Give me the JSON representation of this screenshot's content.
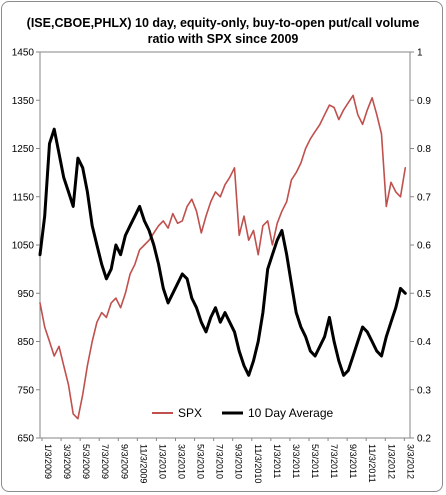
{
  "chart_data": {
    "type": "line",
    "title_lines": [
      "(ISE,CBOE,PHLX) 10 day, equity-only, buy-to-open put/call volume",
      "ratio with SPX since 2009"
    ],
    "left_axis": {
      "ylim": [
        650,
        1450
      ],
      "ticks": [
        "650",
        "750",
        "850",
        "950",
        "1050",
        "1150",
        "1250",
        "1350",
        "1450"
      ]
    },
    "right_axis": {
      "ylim": [
        0.2,
        1.0
      ],
      "ticks": [
        "0.2",
        "0.3",
        "0.4",
        "0.5",
        "0.6",
        "0.7",
        "0.8",
        "0.9",
        "1"
      ]
    },
    "x_labels": [
      "1/3/2009",
      "3/3/2009",
      "5/3/2009",
      "7/3/2009",
      "9/3/2009",
      "11/3/2009",
      "1/3/2010",
      "3/3/2010",
      "5/3/2010",
      "7/3/2010",
      "9/3/2010",
      "11/3/2010",
      "1/3/2011",
      "3/3/2011",
      "5/3/2011",
      "7/3/2011",
      "9/3/2011",
      "11/3/2011",
      "1/3/2012",
      "3/3/2012"
    ],
    "x_range": [
      0,
      39
    ],
    "legend": {
      "placement": "bottom-center"
    },
    "series": [
      {
        "name": "SPX",
        "axis": "left",
        "color": "#c0504d",
        "x": [
          0,
          0.5,
          1,
          1.5,
          2,
          2.5,
          3,
          3.5,
          4,
          4.5,
          5,
          5.5,
          6,
          6.5,
          7,
          7.5,
          8,
          8.5,
          9,
          9.5,
          10,
          10.5,
          11,
          11.5,
          12,
          12.5,
          13,
          13.5,
          14,
          14.5,
          15,
          15.5,
          16,
          16.5,
          17,
          17.5,
          18,
          18.5,
          19,
          19.5,
          20,
          20.5,
          21,
          21.5,
          22,
          22.5,
          23,
          23.5,
          24,
          24.5,
          25,
          25.5,
          26,
          26.5,
          27,
          27.5,
          28,
          28.5,
          29,
          29.5,
          30,
          30.5,
          31,
          31.5,
          32,
          32.5,
          33,
          33.5,
          34,
          34.5,
          35,
          35.5,
          36,
          36.5,
          37,
          37.5,
          38,
          38.5
        ],
        "values": [
          930,
          880,
          850,
          820,
          840,
          800,
          760,
          700,
          690,
          740,
          800,
          850,
          890,
          910,
          900,
          930,
          940,
          920,
          950,
          990,
          1010,
          1040,
          1050,
          1060,
          1075,
          1090,
          1100,
          1085,
          1115,
          1095,
          1100,
          1130,
          1145,
          1120,
          1075,
          1110,
          1140,
          1160,
          1150,
          1175,
          1190,
          1210,
          1070,
          1110,
          1060,
          1080,
          1030,
          1090,
          1100,
          1050,
          1095,
          1120,
          1140,
          1185,
          1200,
          1220,
          1250,
          1270,
          1285,
          1300,
          1320,
          1340,
          1335,
          1310,
          1330,
          1345,
          1360,
          1320,
          1300,
          1330,
          1355,
          1320,
          1280,
          1130,
          1180,
          1160,
          1150,
          1210
        ]
      },
      {
        "name": "10 Day Average",
        "axis": "right",
        "color": "#000000",
        "x": [
          0,
          0.5,
          1,
          1.5,
          2,
          2.5,
          3,
          3.5,
          4,
          4.5,
          5,
          5.5,
          6,
          6.5,
          7,
          7.5,
          8,
          8.5,
          9,
          9.5,
          10,
          10.5,
          11,
          11.5,
          12,
          12.5,
          13,
          13.5,
          14,
          14.5,
          15,
          15.5,
          16,
          16.5,
          17,
          17.5,
          18,
          18.5,
          19,
          19.5,
          20,
          20.5,
          21,
          21.5,
          22,
          22.5,
          23,
          23.5,
          24,
          24.5,
          25,
          25.5,
          26,
          26.5,
          27,
          27.5,
          28,
          28.5,
          29,
          29.5,
          30,
          30.5,
          31,
          31.5,
          32,
          32.5,
          33,
          33.5,
          34,
          34.5,
          35,
          35.5,
          36,
          36.5,
          37,
          37.5,
          38,
          38.5
        ],
        "values": [
          0.58,
          0.66,
          0.81,
          0.84,
          0.79,
          0.74,
          0.71,
          0.68,
          0.78,
          0.76,
          0.71,
          0.64,
          0.6,
          0.56,
          0.53,
          0.55,
          0.6,
          0.58,
          0.62,
          0.64,
          0.66,
          0.68,
          0.65,
          0.63,
          0.6,
          0.56,
          0.51,
          0.48,
          0.5,
          0.52,
          0.54,
          0.53,
          0.49,
          0.47,
          0.44,
          0.42,
          0.45,
          0.47,
          0.44,
          0.46,
          0.44,
          0.42,
          0.38,
          0.35,
          0.33,
          0.36,
          0.4,
          0.46,
          0.55,
          0.58,
          0.61,
          0.63,
          0.58,
          0.52,
          0.46,
          0.43,
          0.41,
          0.38,
          0.37,
          0.39,
          0.41,
          0.45,
          0.4,
          0.36,
          0.33,
          0.34,
          0.37,
          0.4,
          0.43,
          0.42,
          0.4,
          0.38,
          0.37,
          0.41,
          0.44,
          0.47,
          0.51,
          0.5
        ]
      }
    ]
  }
}
